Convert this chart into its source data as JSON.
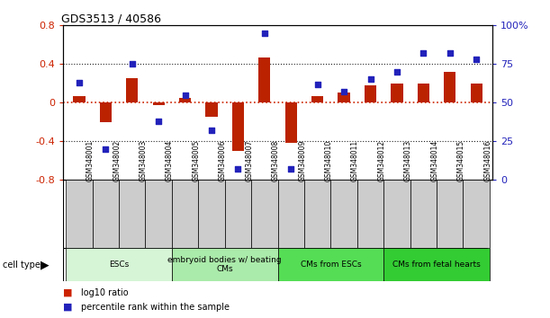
{
  "title": "GDS3513 / 40586",
  "samples": [
    "GSM348001",
    "GSM348002",
    "GSM348003",
    "GSM348004",
    "GSM348005",
    "GSM348006",
    "GSM348007",
    "GSM348008",
    "GSM348009",
    "GSM348010",
    "GSM348011",
    "GSM348012",
    "GSM348013",
    "GSM348014",
    "GSM348015",
    "GSM348016"
  ],
  "log10_ratio": [
    0.07,
    -0.2,
    0.25,
    -0.03,
    0.05,
    -0.15,
    -0.5,
    0.47,
    -0.42,
    0.07,
    0.1,
    0.18,
    0.2,
    0.2,
    0.32,
    0.2
  ],
  "percentile_rank": [
    63,
    20,
    75,
    38,
    55,
    32,
    7,
    95,
    7,
    62,
    57,
    65,
    70,
    82,
    82,
    78
  ],
  "ylim_left": [
    -0.8,
    0.8
  ],
  "ylim_right": [
    0,
    100
  ],
  "yticks_left": [
    -0.8,
    -0.4,
    0.0,
    0.4,
    0.8
  ],
  "ytick_labels_left": [
    "-0.8",
    "-0.4",
    "0",
    "0.4",
    "0.8"
  ],
  "yticks_right": [
    0,
    25,
    50,
    75,
    100
  ],
  "ytick_labels_right": [
    "0",
    "25",
    "50",
    "75",
    "100%"
  ],
  "cell_groups": [
    {
      "label": "ESCs",
      "start": 0,
      "end": 3,
      "color": "#d6f5d6"
    },
    {
      "label": "embryoid bodies w/ beating\nCMs",
      "start": 4,
      "end": 7,
      "color": "#aaeaaa"
    },
    {
      "label": "CMs from ESCs",
      "start": 8,
      "end": 11,
      "color": "#55dd55"
    },
    {
      "label": "CMs from fetal hearts",
      "start": 12,
      "end": 15,
      "color": "#33cc33"
    }
  ],
  "bar_color": "#bb2200",
  "dot_color": "#2222bb",
  "zero_line_color": "#cc2200",
  "grid_color": "#222222",
  "tick_label_color_left": "#cc2200",
  "tick_label_color_right": "#2222bb",
  "bar_width": 0.45,
  "dot_size": 18,
  "xticklabel_bg": "#cccccc",
  "legend_square_red": "#cc2200",
  "legend_square_blue": "#2222bb"
}
